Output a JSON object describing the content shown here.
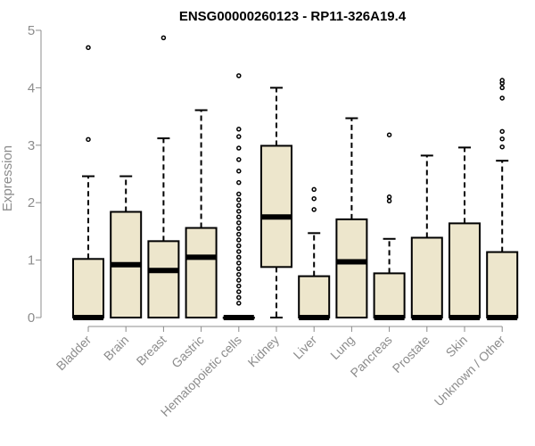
{
  "chart_data": {
    "type": "boxplot",
    "title": "ENSG00000260123 - RP11-326A19.4",
    "ylabel": "Expression",
    "xlabel": "",
    "ylim": [
      0,
      5
    ],
    "yticks": [
      "0",
      "1",
      "2",
      "3",
      "4",
      "5"
    ],
    "grid": false,
    "colors": {
      "box_fill": "#ede6cc",
      "stroke": "#000000",
      "axis": "#8c8c8c"
    },
    "categories": [
      "Bladder",
      "Brain",
      "Breast",
      "Gastric",
      "Hematopoietic cells",
      "Kidney",
      "Liver",
      "Lung",
      "Pancreas",
      "Prostate",
      "Skin",
      "Unknown / Other"
    ],
    "boxes": [
      {
        "q1": 0,
        "median": 0,
        "q3": 1.02,
        "wlow": 0,
        "whigh": 2.46,
        "outliers": [
          3.1,
          4.7
        ]
      },
      {
        "q1": 0,
        "median": 0.92,
        "q3": 1.84,
        "wlow": 0,
        "whigh": 2.46,
        "outliers": []
      },
      {
        "q1": 0,
        "median": 0.82,
        "q3": 1.33,
        "wlow": 0,
        "whigh": 3.12,
        "outliers": [
          4.87
        ]
      },
      {
        "q1": 0,
        "median": 1.05,
        "q3": 1.56,
        "wlow": 0,
        "whigh": 3.61,
        "outliers": []
      },
      {
        "q1": 0,
        "median": 0,
        "q3": 0,
        "wlow": 0,
        "whigh": 0,
        "outliers": [
          0.25,
          0.35,
          0.45,
          0.55,
          0.65,
          0.75,
          0.85,
          0.95,
          1.05,
          1.15,
          1.25,
          1.35,
          1.45,
          1.55,
          1.65,
          1.75,
          1.85,
          1.95,
          2.05,
          2.15,
          2.35,
          2.55,
          2.75,
          2.95,
          3.15,
          3.28,
          4.21
        ]
      },
      {
        "q1": 0.88,
        "median": 1.75,
        "q3": 2.99,
        "wlow": 0,
        "whigh": 4.0,
        "outliers": []
      },
      {
        "q1": 0,
        "median": 0,
        "q3": 0.72,
        "wlow": 0,
        "whigh": 1.47,
        "outliers": [
          1.88,
          2.07,
          2.23
        ]
      },
      {
        "q1": 0,
        "median": 0.97,
        "q3": 1.71,
        "wlow": 0,
        "whigh": 3.47,
        "outliers": []
      },
      {
        "q1": 0,
        "median": 0,
        "q3": 0.77,
        "wlow": 0,
        "whigh": 1.37,
        "outliers": [
          2.03,
          2.1,
          3.18
        ]
      },
      {
        "q1": 0,
        "median": 0,
        "q3": 1.39,
        "wlow": 0,
        "whigh": 2.82,
        "outliers": []
      },
      {
        "q1": 0,
        "median": 0,
        "q3": 1.64,
        "wlow": 0,
        "whigh": 2.96,
        "outliers": []
      },
      {
        "q1": 0,
        "median": 0,
        "q3": 1.14,
        "wlow": 0,
        "whigh": 2.73,
        "outliers": [
          2.97,
          3.11,
          3.24,
          3.82,
          4.0,
          4.08,
          4.13
        ]
      }
    ]
  }
}
